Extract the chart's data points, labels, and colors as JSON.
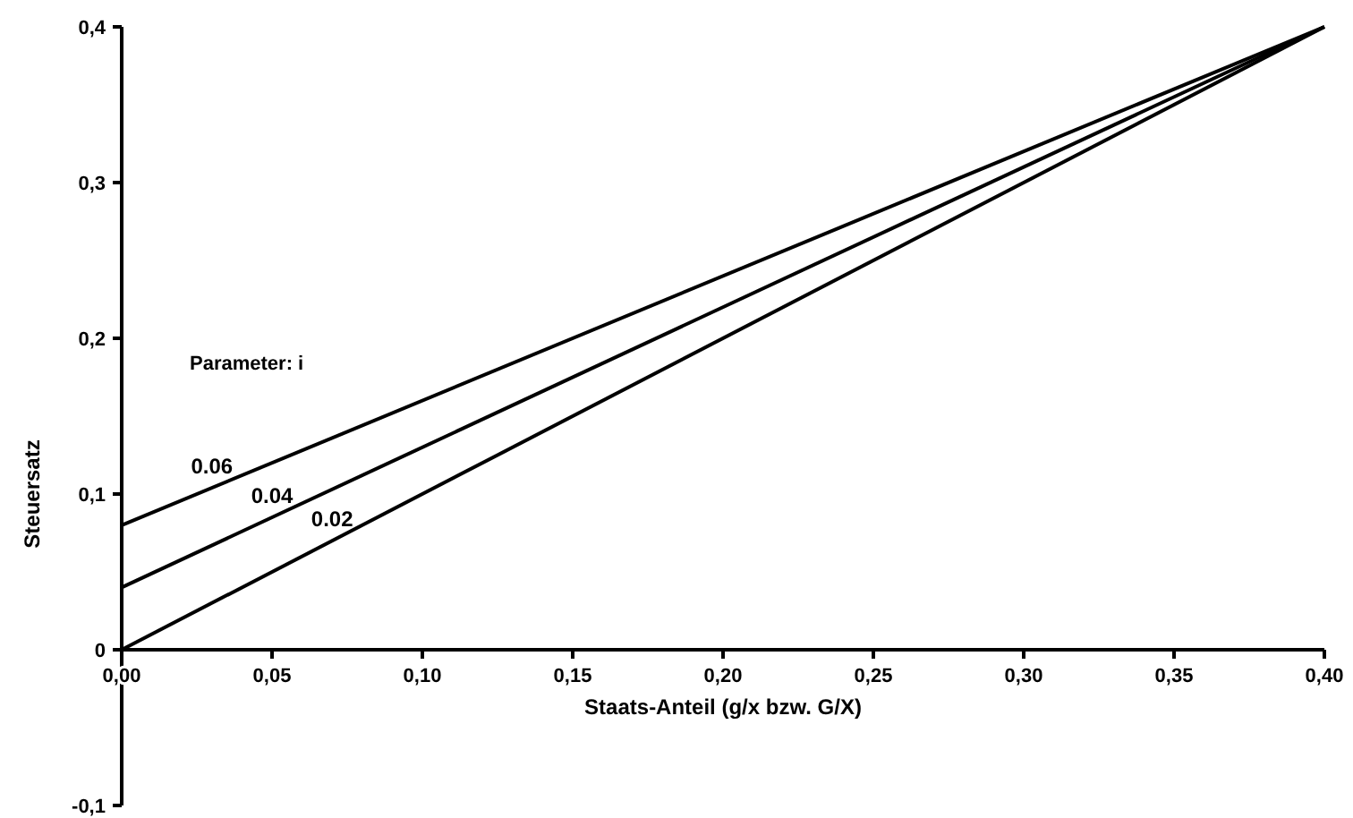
{
  "chart_data": {
    "type": "line",
    "xlabel": "Staats-Anteil (g/x bzw. G/X)",
    "ylabel": "Steuersatz",
    "annotations": [
      "Parameter: i"
    ],
    "x": [
      0,
      0.4
    ],
    "series": [
      {
        "name": "0.06",
        "color": "#000000",
        "values": [
          0.08,
          0.4
        ]
      },
      {
        "name": "0.04",
        "color": "#000000",
        "values": [
          0.04,
          0.4
        ]
      },
      {
        "name": "0.02",
        "color": "#000000",
        "values": [
          0,
          0.4
        ]
      }
    ],
    "xlim": [
      0,
      0.4
    ],
    "ylim": [
      -0.1,
      0.4
    ],
    "xticks": [
      {
        "value": 0,
        "label": "0,00"
      },
      {
        "value": 0.05,
        "label": "0,05"
      },
      {
        "value": 0.1,
        "label": "0,10"
      },
      {
        "value": 0.15,
        "label": "0,15"
      },
      {
        "value": 0.2,
        "label": "0,20"
      },
      {
        "value": 0.25,
        "label": "0,25"
      },
      {
        "value": 0.3,
        "label": "0,30"
      },
      {
        "value": 0.35,
        "label": "0,35"
      },
      {
        "value": 0.4,
        "label": "0,40"
      }
    ],
    "yticks": [
      {
        "value": -0.1,
        "label": "-0,1"
      },
      0,
      {
        "value": 0.1,
        "label": "0,1"
      },
      {
        "value": 0.2,
        "label": "0,2"
      },
      {
        "value": 0.3,
        "label": "0,3"
      },
      {
        "value": 0.4,
        "label": "0,4"
      }
    ],
    "grid": false
  }
}
